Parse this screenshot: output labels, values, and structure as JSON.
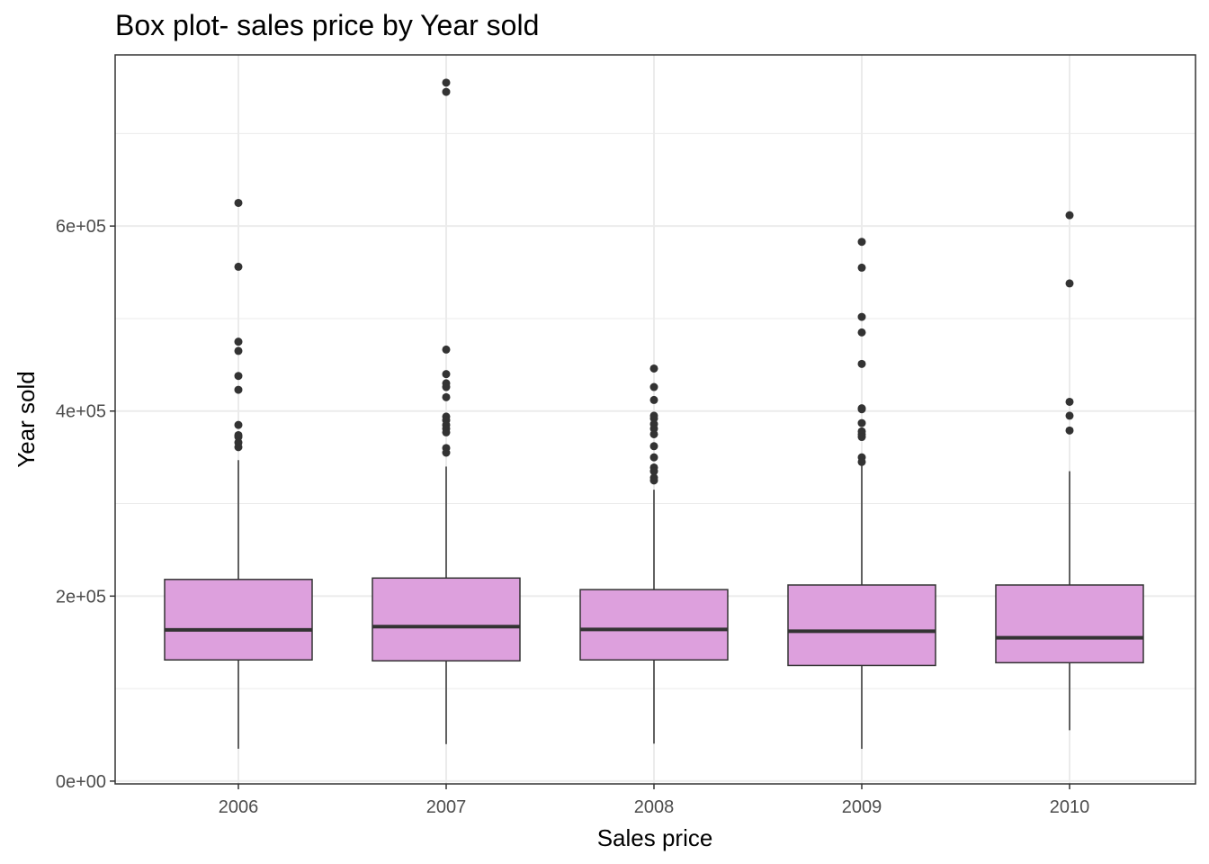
{
  "chart_data": {
    "type": "boxplot",
    "title": "Box plot- sales price by Year sold",
    "xlabel": "Sales price",
    "ylabel": "Year sold",
    "categories": [
      "2006",
      "2007",
      "2008",
      "2009",
      "2010"
    ],
    "ylim": [
      -3000,
      785000
    ],
    "y_ticks": [
      0,
      200000,
      400000,
      600000
    ],
    "y_tick_labels": [
      "0e+00",
      "2e+05",
      "4e+05",
      "6e+05"
    ],
    "grid": true,
    "box_fill": "#DDA0DD",
    "box_stroke": "#333333",
    "point_color": "#333333",
    "grid_color": "#EBEBEB",
    "boxes": [
      {
        "category": "2006",
        "whisker_low": 35000,
        "q1": 131000,
        "median": 163500,
        "q3": 218000,
        "whisker_high": 347000,
        "outliers": [
          625000,
          556000,
          475000,
          465000,
          438000,
          423000,
          385000,
          374000,
          372000,
          366000,
          361000
        ]
      },
      {
        "category": "2007",
        "whisker_low": 40000,
        "q1": 130000,
        "median": 167000,
        "q3": 219500,
        "whisker_high": 340000,
        "outliers": [
          755000,
          745000,
          466500,
          440000,
          430000,
          426000,
          415000,
          394000,
          390000,
          385000,
          381000,
          377000,
          360000,
          355000
        ]
      },
      {
        "category": "2008",
        "whisker_low": 40500,
        "q1": 131000,
        "median": 164000,
        "q3": 207000,
        "whisker_high": 315000,
        "outliers": [
          446000,
          426000,
          412000,
          395000,
          392000,
          386000,
          381000,
          375000,
          362000,
          350000,
          339000,
          335000,
          328000,
          325000
        ]
      },
      {
        "category": "2009",
        "whisker_low": 34900,
        "q1": 125000,
        "median": 162000,
        "q3": 212000,
        "whisker_high": 345000,
        "outliers": [
          582900,
          555000,
          501800,
          485000,
          451000,
          403000,
          402000,
          387000,
          378000,
          375000,
          372000,
          350000,
          345000
        ]
      },
      {
        "category": "2010",
        "whisker_low": 55000,
        "q1": 128000,
        "median": 155000,
        "q3": 212000,
        "whisker_high": 335000,
        "outliers": [
          611657,
          538000,
          410000,
          395000,
          379000
        ]
      }
    ]
  }
}
